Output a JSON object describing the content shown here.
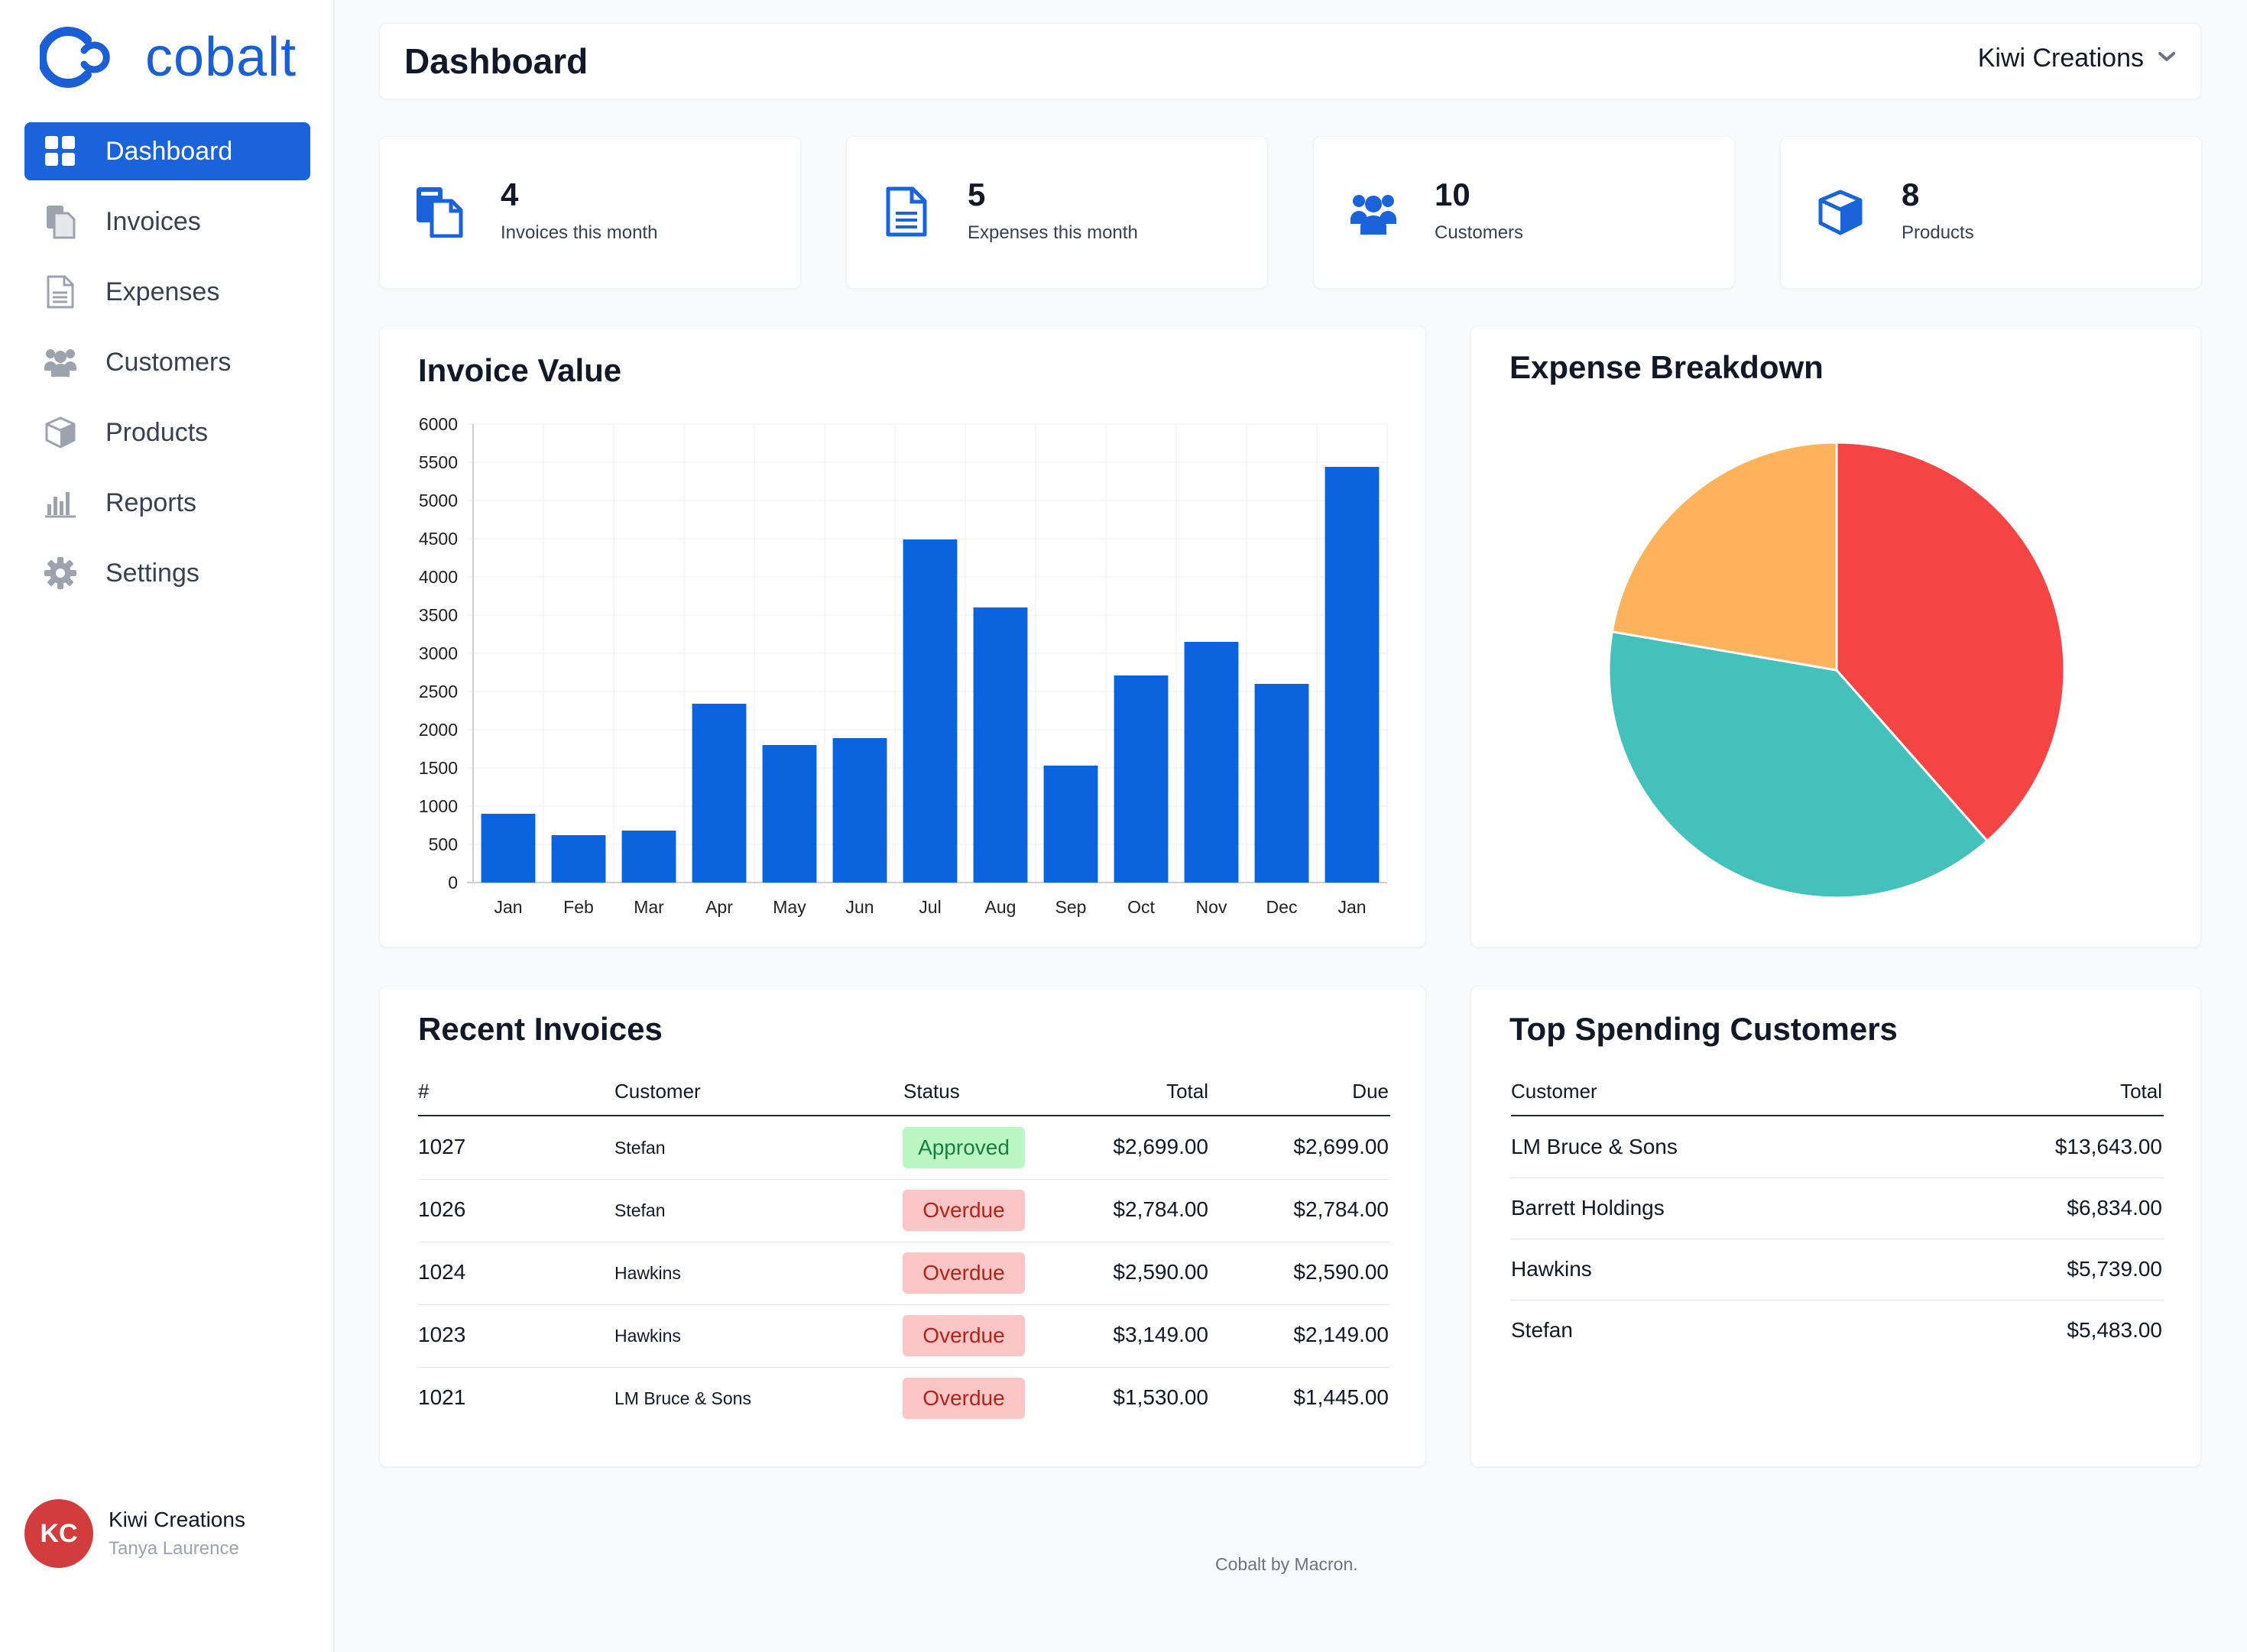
{
  "brand": {
    "name": "cobalt"
  },
  "sidebar": {
    "items": [
      {
        "label": "Dashboard",
        "icon": "dashboard-grid-icon",
        "active": true
      },
      {
        "label": "Invoices",
        "icon": "invoices-icon"
      },
      {
        "label": "Expenses",
        "icon": "expenses-icon"
      },
      {
        "label": "Customers",
        "icon": "customers-icon"
      },
      {
        "label": "Products",
        "icon": "products-icon"
      },
      {
        "label": "Reports",
        "icon": "reports-icon"
      },
      {
        "label": "Settings",
        "icon": "settings-icon"
      }
    ],
    "account": {
      "initials": "KC",
      "org": "Kiwi Creations",
      "user": "Tanya Laurence"
    }
  },
  "header": {
    "title": "Dashboard",
    "org_select": "Kiwi Creations"
  },
  "stats": [
    {
      "value": "4",
      "label": "Invoices this month",
      "icon": "invoices-icon"
    },
    {
      "value": "5",
      "label": "Expenses this month",
      "icon": "expenses-icon"
    },
    {
      "value": "10",
      "label": "Customers",
      "icon": "customers-icon"
    },
    {
      "value": "8",
      "label": "Products",
      "icon": "products-icon"
    }
  ],
  "colors": {
    "accent": "#1a63db",
    "bar": "#0b63de",
    "pie_red": "#f54444",
    "pie_teal": "#45c1bb",
    "pie_orange": "#feb25c"
  },
  "invoice_value": {
    "title": "Invoice Value"
  },
  "expense_breakdown": {
    "title": "Expense Breakdown"
  },
  "chart_data": [
    {
      "type": "bar",
      "title": "Invoice Value",
      "categories": [
        "Jan",
        "Feb",
        "Mar",
        "Apr",
        "May",
        "Jun",
        "Jul",
        "Aug",
        "Sep",
        "Oct",
        "Nov",
        "Dec",
        "Jan"
      ],
      "values": [
        900,
        620,
        680,
        2340,
        1800,
        1890,
        4490,
        3600,
        1530,
        2710,
        3150,
        2600,
        5440
      ],
      "yticks": [
        "0",
        "500",
        "1000",
        "1500",
        "2000",
        "2500",
        "3000",
        "3500",
        "4000",
        "4500",
        "5000",
        "5500",
        "6000"
      ],
      "ylim": [
        0,
        6000
      ],
      "grid": true,
      "xlabel": "",
      "ylabel": ""
    },
    {
      "type": "pie",
      "title": "Expense Breakdown",
      "values": [
        38.5,
        39.2,
        22.3
      ],
      "colors": [
        "#f54444",
        "#45c1bb",
        "#feb25c"
      ]
    }
  ],
  "recent_invoices": {
    "title": "Recent Invoices",
    "headers": [
      "#",
      "Customer",
      "Status",
      "Total",
      "Due"
    ],
    "rows": [
      {
        "id": "1027",
        "customer": "Stefan",
        "status": "Approved",
        "total": "$2,699.00",
        "due": "$2,699.00"
      },
      {
        "id": "1026",
        "customer": "Stefan",
        "status": "Overdue",
        "total": "$2,784.00",
        "due": "$2,784.00"
      },
      {
        "id": "1024",
        "customer": "Hawkins",
        "status": "Overdue",
        "total": "$2,590.00",
        "due": "$2,590.00"
      },
      {
        "id": "1023",
        "customer": "Hawkins",
        "status": "Overdue",
        "total": "$3,149.00",
        "due": "$2,149.00"
      },
      {
        "id": "1021",
        "customer": "LM Bruce & Sons",
        "status": "Overdue",
        "total": "$1,530.00",
        "due": "$1,445.00"
      }
    ]
  },
  "top_customers": {
    "title": "Top Spending Customers",
    "headers": [
      "Customer",
      "Total"
    ],
    "rows": [
      {
        "customer": "LM Bruce & Sons",
        "total": "$13,643.00"
      },
      {
        "customer": "Barrett Holdings",
        "total": "$6,834.00"
      },
      {
        "customer": "Hawkins",
        "total": "$5,739.00"
      },
      {
        "customer": "Stefan",
        "total": "$5,483.00"
      }
    ]
  },
  "footer": {
    "text": "Cobalt by Macron."
  }
}
